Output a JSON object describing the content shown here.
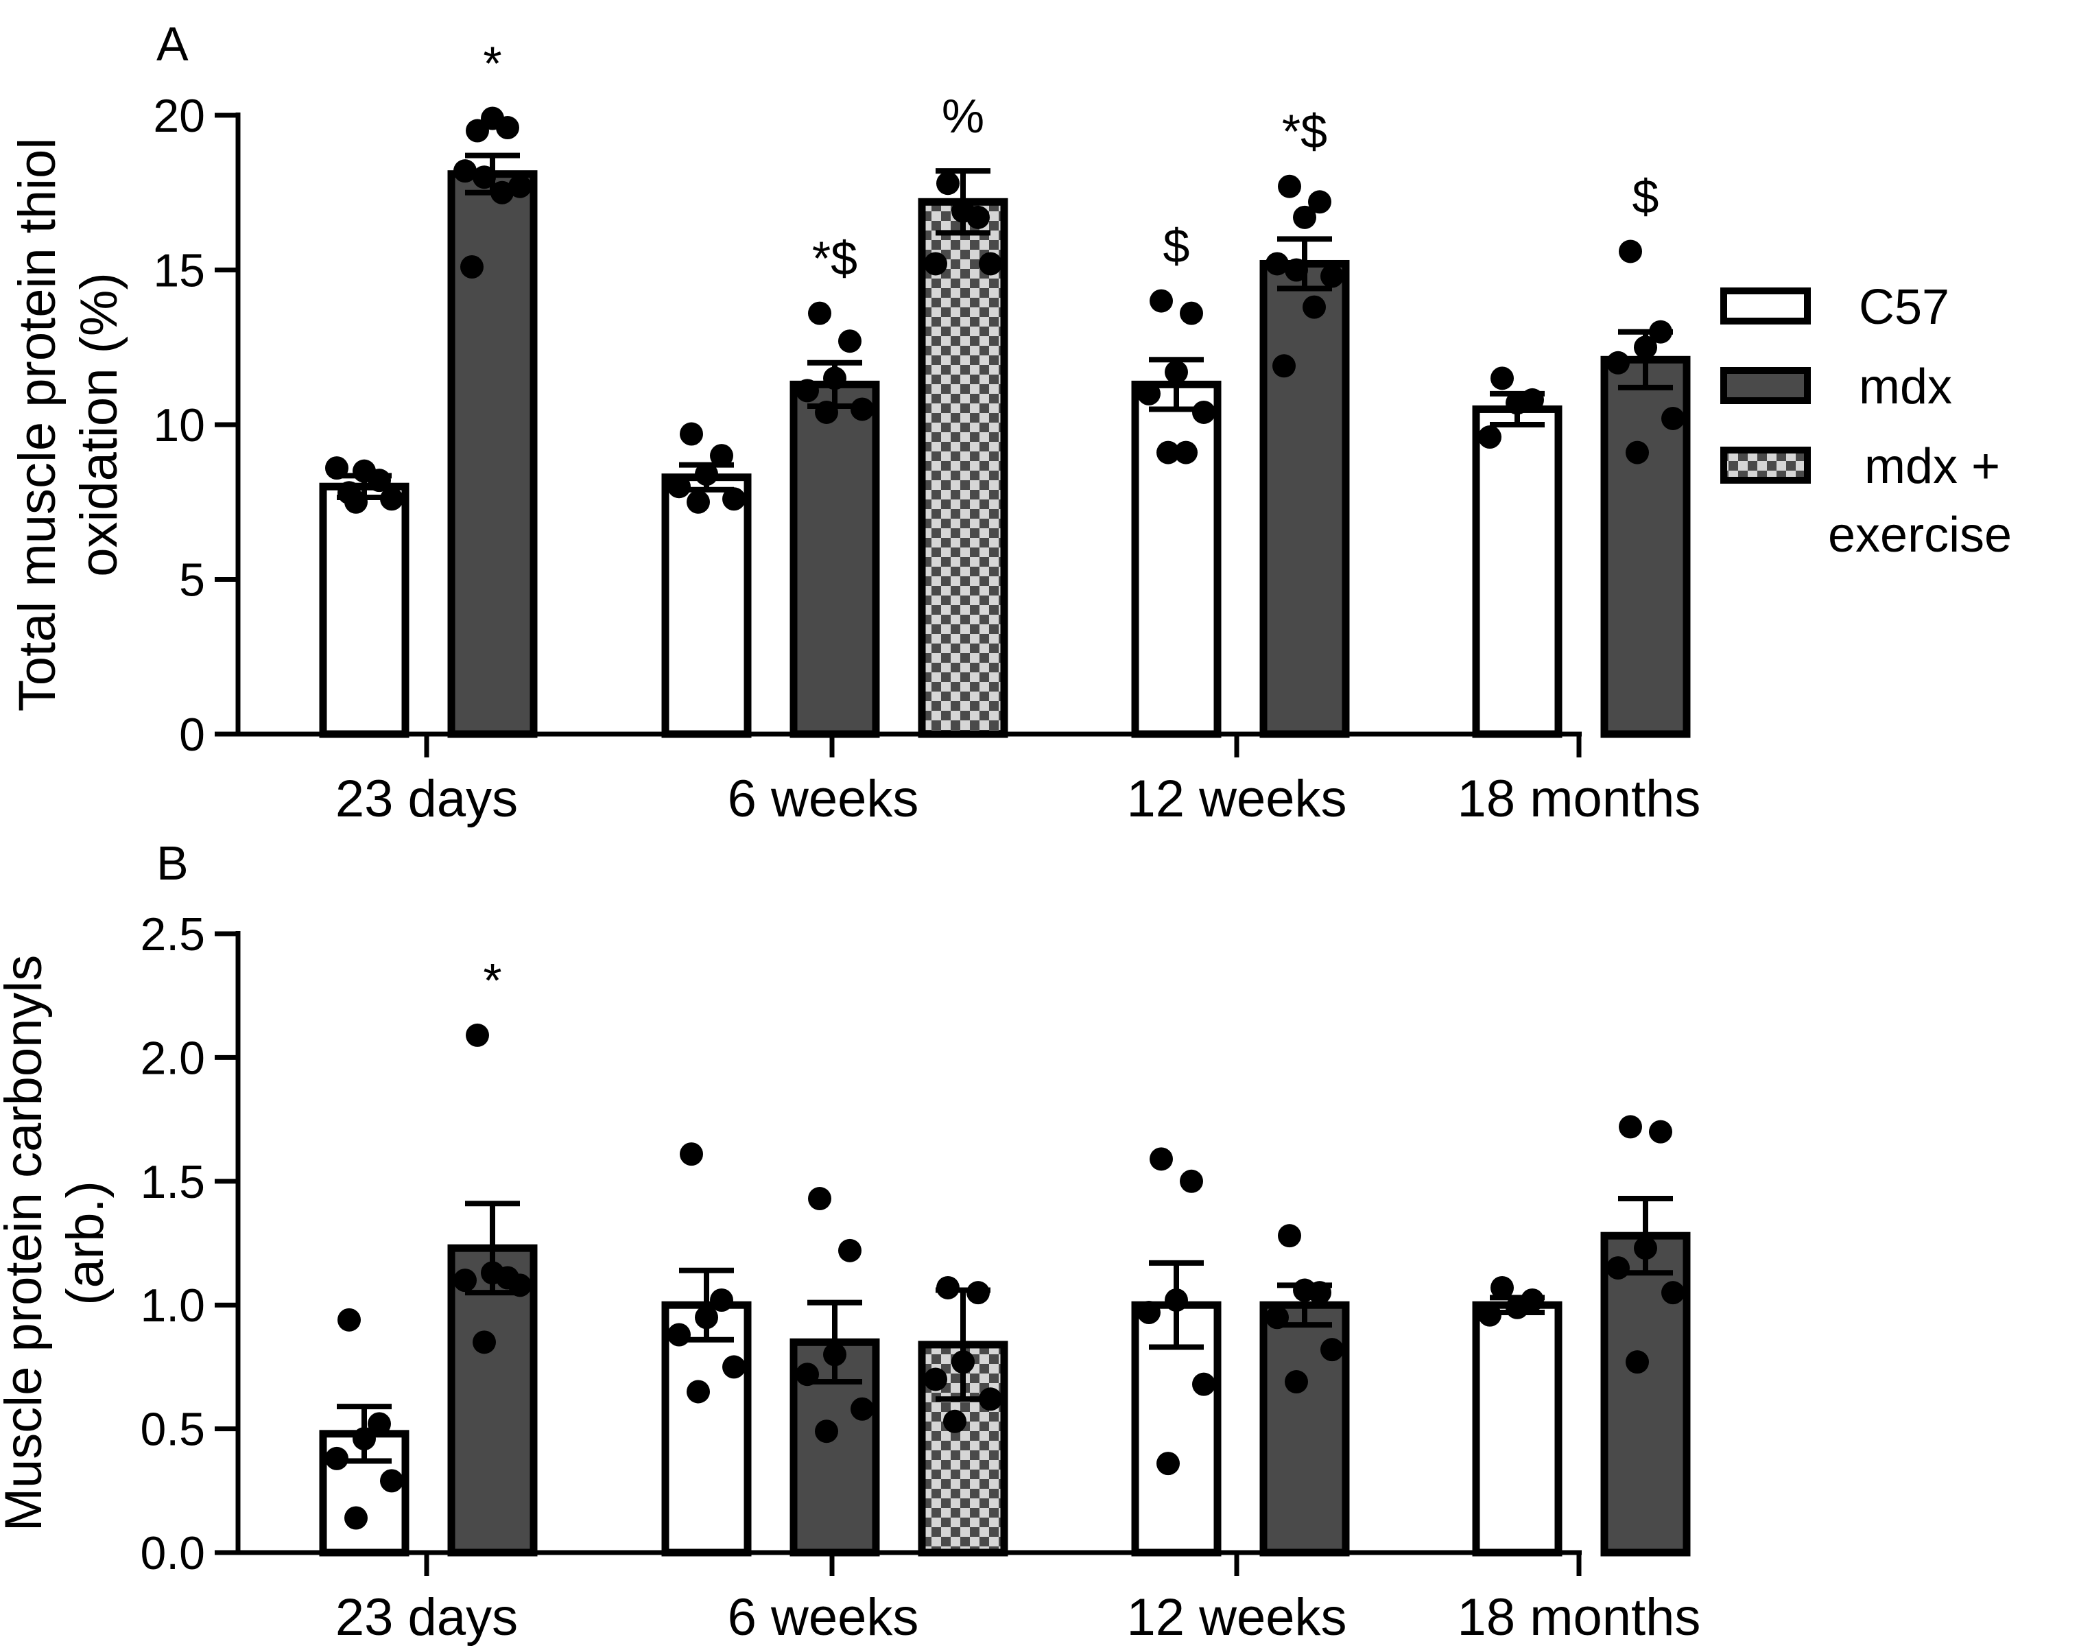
{
  "colors": {
    "axis": "#000000",
    "bar_outline": "#000000",
    "mdx_fill": "#4a4a4a",
    "c57_fill": "#ffffff",
    "checker_light": "#d6d6d6",
    "checker_dark": "#4a4a4a",
    "dot": "#000000"
  },
  "legend": {
    "items": [
      {
        "label": "C57",
        "pattern": "white"
      },
      {
        "label": "mdx",
        "pattern": "dark"
      },
      {
        "label": "mdx + exercise",
        "line1": "mdx +",
        "line2": "exercise",
        "pattern": "checker"
      }
    ]
  },
  "chart_data": [
    {
      "type": "bar",
      "panel_label": "A",
      "ylabel_line1": "Total muscle protein thiol",
      "ylabel_line2": "oxidation (%)",
      "ylim": [
        0,
        20
      ],
      "yticks": [
        0,
        5,
        10,
        15,
        20
      ],
      "ytick_labels": [
        "0",
        "5",
        "10",
        "15",
        "20"
      ],
      "categories": [
        "23 days",
        "6 weeks",
        "12 weeks",
        "18 months"
      ],
      "bars": [
        {
          "group": 0,
          "slot": 0,
          "series": "C57",
          "pattern": "white",
          "mean": 8.0,
          "sem": 0.35,
          "points": [
            7.8,
            8.2,
            8.5,
            8.6,
            7.6,
            7.5
          ],
          "annotation": ""
        },
        {
          "group": 0,
          "slot": 1,
          "series": "mdx",
          "pattern": "dark",
          "mean": 18.1,
          "sem": 0.6,
          "points": [
            19.5,
            19.6,
            19.9,
            18.2,
            17.7,
            18.0,
            17.5,
            15.1
          ],
          "annotation": "*"
        },
        {
          "group": 1,
          "slot": 0,
          "series": "C57",
          "pattern": "white",
          "mean": 8.3,
          "sem": 0.4,
          "points": [
            9.7,
            9.0,
            8.4,
            8.0,
            7.6,
            7.5
          ],
          "annotation": ""
        },
        {
          "group": 1,
          "slot": 1,
          "series": "mdx",
          "pattern": "dark",
          "mean": 11.3,
          "sem": 0.7,
          "points": [
            13.6,
            12.7,
            11.5,
            11.1,
            10.5,
            10.4
          ],
          "annotation": "*$"
        },
        {
          "group": 1,
          "slot": 2,
          "series": "mdx + exercise",
          "pattern": "checker",
          "mean": 17.2,
          "sem": 1.0,
          "points": [
            17.8,
            16.7,
            16.9,
            15.2,
            15.2
          ],
          "annotation": "%"
        },
        {
          "group": 2,
          "slot": 0,
          "series": "C57",
          "pattern": "white",
          "mean": 11.3,
          "sem": 0.8,
          "points": [
            14.0,
            13.6,
            11.7,
            11.0,
            10.4,
            9.1,
            9.1
          ],
          "annotation": "$"
        },
        {
          "group": 2,
          "slot": 1,
          "series": "mdx",
          "pattern": "dark",
          "mean": 15.2,
          "sem": 0.8,
          "points": [
            17.7,
            17.2,
            16.7,
            15.2,
            14.8,
            15.0,
            13.8,
            11.9
          ],
          "annotation": "*$"
        },
        {
          "group": 3,
          "slot": 0,
          "series": "C57",
          "pattern": "white",
          "mean": 10.5,
          "sem": 0.5,
          "points": [
            11.5,
            10.8,
            10.7,
            9.6
          ],
          "annotation": ""
        },
        {
          "group": 3,
          "slot": 1,
          "series": "mdx",
          "pattern": "dark",
          "mean": 12.1,
          "sem": 0.9,
          "points": [
            15.6,
            13.0,
            12.5,
            12.0,
            10.2,
            9.1
          ],
          "annotation": "$"
        }
      ]
    },
    {
      "type": "bar",
      "panel_label": "B",
      "ylabel_line1": "Muscle protein carbonyls",
      "ylabel_line2": "(arb.)",
      "ylim": [
        0,
        2.5
      ],
      "yticks": [
        0,
        0.5,
        1.0,
        1.5,
        2.0,
        2.5
      ],
      "ytick_labels": [
        "0.0",
        "0.5",
        "1.0",
        "1.5",
        "2.0",
        "2.5"
      ],
      "categories": [
        "23 days",
        "6 weeks",
        "12 weeks",
        "18 months"
      ],
      "bars": [
        {
          "group": 0,
          "slot": 0,
          "series": "C57",
          "pattern": "white",
          "mean": 0.48,
          "sem": 0.11,
          "points": [
            0.94,
            0.52,
            0.46,
            0.38,
            0.29,
            0.14
          ],
          "annotation": ""
        },
        {
          "group": 0,
          "slot": 1,
          "series": "mdx",
          "pattern": "dark",
          "mean": 1.23,
          "sem": 0.18,
          "points": [
            2.09,
            1.11,
            1.13,
            1.1,
            1.08,
            0.85
          ],
          "annotation": "*"
        },
        {
          "group": 1,
          "slot": 0,
          "series": "C57",
          "pattern": "white",
          "mean": 1.0,
          "sem": 0.14,
          "points": [
            1.61,
            1.02,
            0.95,
            0.88,
            0.75,
            0.65
          ],
          "annotation": ""
        },
        {
          "group": 1,
          "slot": 1,
          "series": "mdx",
          "pattern": "dark",
          "mean": 0.85,
          "sem": 0.16,
          "points": [
            1.43,
            1.22,
            0.8,
            0.72,
            0.58,
            0.49
          ],
          "annotation": ""
        },
        {
          "group": 1,
          "slot": 2,
          "series": "mdx + exercise",
          "pattern": "checker",
          "mean": 0.84,
          "sem": 0.22,
          "points": [
            1.07,
            1.05,
            0.77,
            0.7,
            0.62,
            0.53
          ],
          "annotation": ""
        },
        {
          "group": 2,
          "slot": 0,
          "series": "C57",
          "pattern": "white",
          "mean": 1.0,
          "sem": 0.17,
          "points": [
            1.59,
            1.5,
            1.02,
            0.97,
            0.68,
            0.36
          ],
          "annotation": ""
        },
        {
          "group": 2,
          "slot": 1,
          "series": "mdx",
          "pattern": "dark",
          "mean": 1.0,
          "sem": 0.08,
          "points": [
            1.28,
            1.05,
            1.06,
            0.95,
            0.82,
            0.69
          ],
          "annotation": ""
        },
        {
          "group": 3,
          "slot": 0,
          "series": "C57",
          "pattern": "white",
          "mean": 1.0,
          "sem": 0.03,
          "points": [
            1.07,
            1.02,
            0.99,
            0.96
          ],
          "annotation": ""
        },
        {
          "group": 3,
          "slot": 1,
          "series": "mdx",
          "pattern": "dark",
          "mean": 1.28,
          "sem": 0.15,
          "points": [
            1.72,
            1.7,
            1.23,
            1.15,
            1.05,
            0.77
          ],
          "annotation": ""
        }
      ]
    }
  ]
}
